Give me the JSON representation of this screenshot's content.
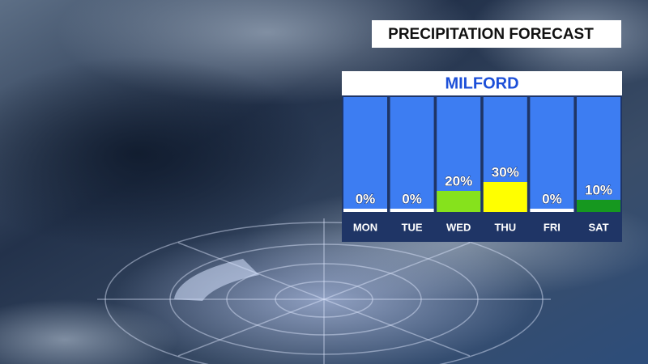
{
  "chart_data": {
    "type": "bar",
    "title": "PRECIPITATION FORECAST",
    "subtitle": "MILFORD",
    "categories": [
      "MON",
      "TUE",
      "WED",
      "THU",
      "FRI",
      "SAT"
    ],
    "values": [
      0,
      0,
      20,
      30,
      0,
      10
    ],
    "value_labels": [
      "0%",
      "0%",
      "20%",
      "30%",
      "0%",
      "10%"
    ],
    "colors": [
      "#ffffff",
      "#ffffff",
      "#86e21c",
      "#ffff00",
      "#ffffff",
      "#16981f"
    ]
  }
}
